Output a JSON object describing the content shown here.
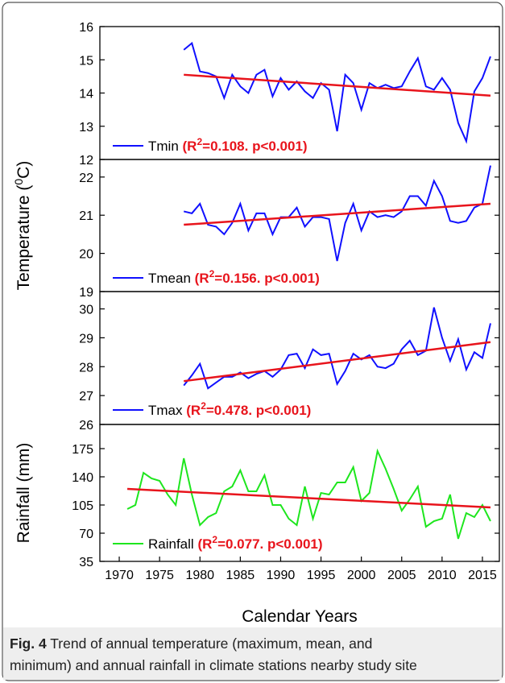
{
  "chart_data": [
    {
      "type": "line",
      "xlim": [
        1967.6,
        2017.1
      ],
      "ylim": [
        12,
        16
      ],
      "yticks": [
        12,
        13,
        14,
        15,
        16
      ],
      "series": [
        {
          "name": "Tmin",
          "color": "#1010ff",
          "x": [
            1978,
            1979,
            1980,
            1981,
            1982,
            1983,
            1984,
            1985,
            1986,
            1987,
            1988,
            1989,
            1990,
            1991,
            1992,
            1993,
            1994,
            1995,
            1996,
            1997,
            1998,
            1999,
            2000,
            2001,
            2002,
            2003,
            2004,
            2005,
            2006,
            2007,
            2008,
            2009,
            2010,
            2011,
            2012,
            2013,
            2014,
            2015,
            2016
          ],
          "values": [
            15.3,
            15.5,
            14.65,
            14.6,
            14.5,
            13.85,
            14.55,
            14.2,
            14.0,
            14.55,
            14.7,
            13.9,
            14.45,
            14.1,
            14.35,
            14.05,
            13.85,
            14.3,
            14.1,
            12.85,
            14.55,
            14.3,
            13.5,
            14.3,
            14.15,
            14.25,
            14.15,
            14.2,
            14.65,
            15.05,
            14.2,
            14.1,
            14.45,
            14.1,
            13.1,
            12.55,
            14.05,
            14.45,
            15.1
          ]
        }
      ],
      "trend": {
        "color": "#e8141c",
        "x": [
          1978,
          2016
        ],
        "values": [
          14.55,
          13.92
        ]
      },
      "stat": [
        "(R",
        "2",
        "=0.108. p<0.001)"
      ]
    },
    {
      "type": "line",
      "xlim": [
        1967.6,
        2017.1
      ],
      "ylim": [
        19,
        22.46
      ],
      "yticks": [
        19,
        20,
        21,
        22
      ],
      "ylabel": [
        "Temperature (",
        "0",
        "C)"
      ],
      "series": [
        {
          "name": "Tmean",
          "color": "#1010ff",
          "x": [
            1978,
            1979,
            1980,
            1981,
            1982,
            1983,
            1984,
            1985,
            1986,
            1987,
            1988,
            1989,
            1990,
            1991,
            1992,
            1993,
            1994,
            1995,
            1996,
            1997,
            1998,
            1999,
            2000,
            2001,
            2002,
            2003,
            2004,
            2005,
            2006,
            2007,
            2008,
            2009,
            2010,
            2011,
            2012,
            2013,
            2014,
            2015,
            2016
          ],
          "values": [
            21.1,
            21.05,
            21.3,
            20.75,
            20.7,
            20.5,
            20.8,
            21.3,
            20.6,
            21.05,
            21.05,
            20.5,
            20.95,
            20.95,
            21.2,
            20.7,
            20.95,
            20.95,
            20.9,
            19.8,
            20.8,
            21.3,
            20.6,
            21.1,
            20.95,
            21.0,
            20.95,
            21.1,
            21.5,
            21.5,
            21.25,
            21.9,
            21.5,
            20.85,
            20.8,
            20.85,
            21.2,
            21.3,
            22.3
          ]
        }
      ],
      "trend": {
        "color": "#e8141c",
        "x": [
          1978,
          2016
        ],
        "values": [
          20.75,
          21.3
        ]
      },
      "stat": [
        "(R",
        "2",
        "=0.156. p<0.001)"
      ]
    },
    {
      "type": "line",
      "xlim": [
        1967.6,
        2017.1
      ],
      "ylim": [
        26,
        30.6
      ],
      "yticks": [
        26,
        27,
        28,
        29,
        30
      ],
      "series": [
        {
          "name": "Tmax",
          "color": "#1010ff",
          "x": [
            1978,
            1979,
            1980,
            1981,
            1982,
            1983,
            1984,
            1985,
            1986,
            1987,
            1988,
            1989,
            1990,
            1991,
            1992,
            1993,
            1994,
            1995,
            1996,
            1997,
            1998,
            1999,
            2000,
            2001,
            2002,
            2003,
            2004,
            2005,
            2006,
            2007,
            2008,
            2009,
            2010,
            2011,
            2012,
            2013,
            2014,
            2015,
            2016
          ],
          "values": [
            27.35,
            27.7,
            28.1,
            27.25,
            27.45,
            27.65,
            27.65,
            27.8,
            27.6,
            27.75,
            27.85,
            27.65,
            27.9,
            28.4,
            28.45,
            27.95,
            28.6,
            28.4,
            28.45,
            27.4,
            27.85,
            28.45,
            28.25,
            28.4,
            28.0,
            27.95,
            28.1,
            28.6,
            28.9,
            28.4,
            28.55,
            30.05,
            29.0,
            28.2,
            28.95,
            27.9,
            28.5,
            28.3,
            29.5
          ]
        }
      ],
      "trend": {
        "color": "#e8141c",
        "x": [
          1978,
          2016
        ],
        "values": [
          27.5,
          28.85
        ]
      },
      "stat": [
        "(R",
        "2",
        "=0.478. p<0.001)"
      ]
    },
    {
      "type": "line",
      "xlim": [
        1967.6,
        2017.1
      ],
      "ylim": [
        35,
        205
      ],
      "yticks": [
        35,
        70,
        105,
        140,
        175
      ],
      "xticks": [
        1970,
        1975,
        1980,
        1985,
        1990,
        1995,
        2000,
        2005,
        2010,
        2015
      ],
      "xlabel": "Calendar Years",
      "ylabel": [
        "Rainfall (mm)"
      ],
      "series": [
        {
          "name": "Rainfall",
          "color": "#1ee61e",
          "x": [
            1971,
            1972,
            1973,
            1974,
            1975,
            1976,
            1977,
            1978,
            1979,
            1980,
            1981,
            1982,
            1983,
            1984,
            1985,
            1986,
            1987,
            1988,
            1989,
            1990,
            1991,
            1992,
            1993,
            1994,
            1995,
            1996,
            1997,
            1998,
            1999,
            2000,
            2001,
            2002,
            2003,
            2004,
            2005,
            2006,
            2007,
            2008,
            2009,
            2010,
            2011,
            2012,
            2013,
            2014,
            2015,
            2016
          ],
          "values": [
            100,
            105,
            145,
            138,
            135,
            118,
            105,
            163,
            118,
            80,
            90,
            95,
            122,
            128,
            148,
            122,
            122,
            142,
            105,
            105,
            88,
            80,
            128,
            88,
            120,
            118,
            133,
            133,
            152,
            110,
            120,
            172,
            150,
            125,
            98,
            112,
            128,
            78,
            85,
            88,
            118,
            63,
            95,
            90,
            105,
            85
          ]
        }
      ],
      "trend": {
        "color": "#e8141c",
        "x": [
          1971,
          2016
        ],
        "values": [
          125,
          102
        ]
      },
      "stat": [
        "(R",
        "2",
        "=0.077. p<0.001)"
      ]
    }
  ],
  "caption": {
    "label": "Fig. 4",
    "lines": [
      "Trend of annual temperature (maximum, mean, and",
      "minimum) and annual rainfall in climate stations nearby study site"
    ]
  }
}
